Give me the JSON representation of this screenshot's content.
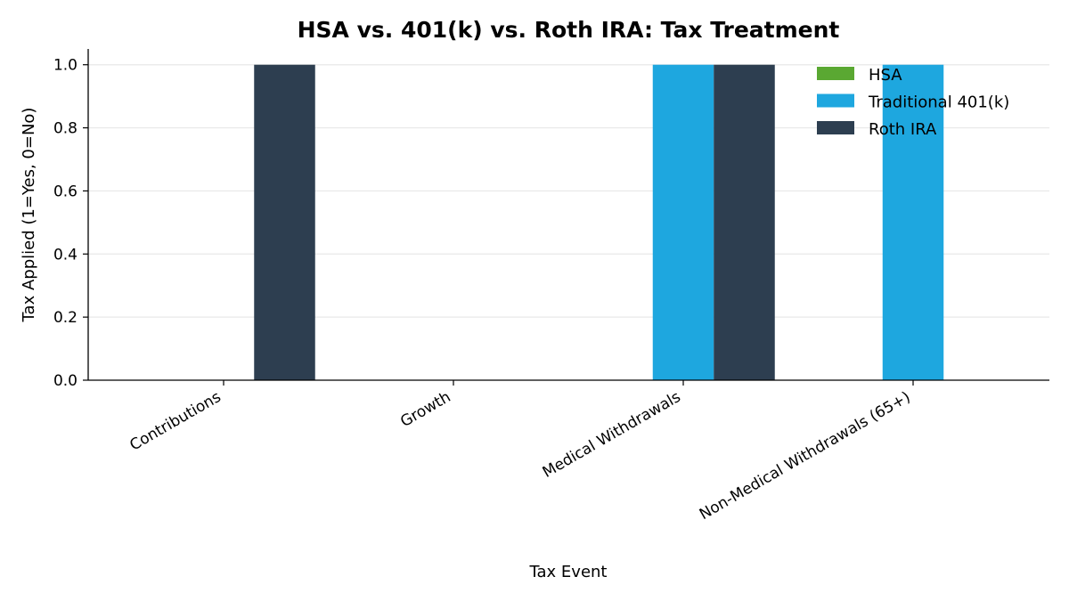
{
  "chart_data": {
    "type": "bar",
    "title": "HSA vs. 401(k) vs. Roth IRA: Tax Treatment",
    "xlabel": "Tax Event",
    "ylabel": "Tax Applied (1=Yes, 0=No)",
    "categories": [
      "Contributions",
      "Growth",
      "Medical Withdrawals",
      "Non-Medical Withdrawals (65+)"
    ],
    "series": [
      {
        "name": "HSA",
        "color": "#5aa832",
        "values": [
          0,
          0,
          0,
          0
        ]
      },
      {
        "name": "Traditional 401(k)",
        "color": "#1ea7df",
        "values": [
          0,
          0,
          1,
          1
        ]
      },
      {
        "name": "Roth IRA",
        "color": "#2d3e50",
        "values": [
          1,
          0,
          1,
          0
        ]
      }
    ],
    "ylim": [
      0,
      1.05
    ],
    "yticks": [
      "0.0",
      "0.2",
      "0.4",
      "0.6",
      "0.8",
      "1.0"
    ],
    "grid": "horizontal",
    "legend_position": "top-right"
  }
}
